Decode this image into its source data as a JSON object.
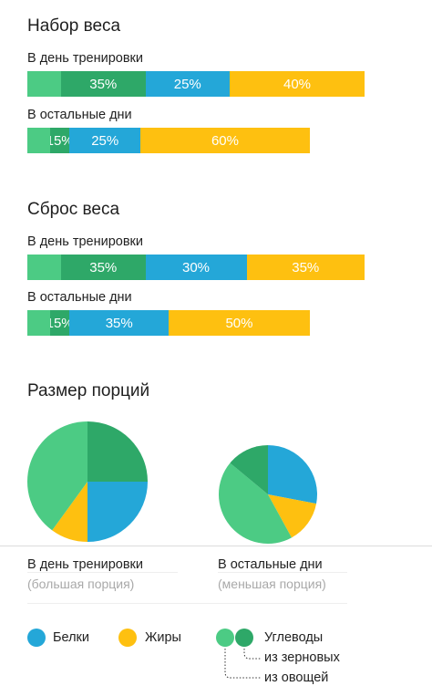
{
  "colors": {
    "protein": "#24a7d8",
    "fat": "#fec010",
    "carb_grain": "#2ea868",
    "carb_veg": "#4ccb84"
  },
  "gain": {
    "title": "Набор веса",
    "training_label": "В день тренировки",
    "training_bar": {
      "carb_veg": 10,
      "carb_grain": 25,
      "carb_label": "35%",
      "protein": 25,
      "protein_label": "25%",
      "fat": 40,
      "fat_label": "40%"
    },
    "rest_label": "В остальные дни",
    "rest_bar": {
      "carb_veg": 8,
      "carb_grain": 7,
      "carb_label": "15%",
      "protein": 25,
      "protein_label": "25%",
      "fat": 60,
      "fat_label": "60%"
    }
  },
  "loss": {
    "title": "Сброс веса",
    "training_label": "В день тренировки",
    "training_bar": {
      "carb_veg": 10,
      "carb_grain": 25,
      "carb_label": "35%",
      "protein": 30,
      "protein_label": "30%",
      "fat": 35,
      "fat_label": "35%"
    },
    "rest_label": "В остальные дни",
    "rest_bar": {
      "carb_veg": 8,
      "carb_grain": 7,
      "carb_label": "15%",
      "protein": 35,
      "protein_label": "35%",
      "fat": 50,
      "fat_label": "50%"
    }
  },
  "portions": {
    "title": "Размер порций",
    "training_pie": {
      "grain": 25,
      "protein": 25,
      "fat": 10,
      "veg": 40
    },
    "rest_pie": {
      "protein": 28,
      "fat": 14,
      "veg": 44,
      "grain": 14
    },
    "training_caption": "В день тренировки",
    "training_sub": "(большая порция)",
    "rest_caption": "В остальные дни",
    "rest_sub": "(меньшая порция)"
  },
  "legend": {
    "protein": "Белки",
    "fat": "Жиры",
    "carbs": "Углеводы",
    "from_grains": "из зерновых",
    "from_veg": "из овощей"
  }
}
